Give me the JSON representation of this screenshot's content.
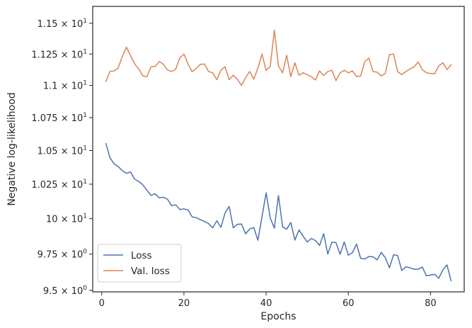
{
  "chart_data": {
    "type": "line",
    "xlabel": "Epochs",
    "ylabel": "Negative log-likelihood",
    "xlim": [
      -2.2,
      88.2
    ],
    "ylim": [
      9.49,
      11.64
    ],
    "y_scale": "log",
    "grid": false,
    "legend": "bottom-left",
    "xticks": [
      0,
      20,
      40,
      60,
      80
    ],
    "xtick_labels": [
      "0",
      "20",
      "40",
      "60",
      "80"
    ],
    "yticks": [
      9.5,
      9.75,
      10,
      10.25,
      10.5,
      10.75,
      11,
      11.25,
      11.5
    ],
    "ytick_labels": [
      {
        "mantissa": "9.5",
        "exp": "0"
      },
      {
        "mantissa": "9.75",
        "exp": "0"
      },
      {
        "mantissa": "10",
        "exp": "1"
      },
      {
        "mantissa": "1.025",
        "exp": "1"
      },
      {
        "mantissa": "1.05",
        "exp": "1"
      },
      {
        "mantissa": "1.075",
        "exp": "1"
      },
      {
        "mantissa": "1.1",
        "exp": "1"
      },
      {
        "mantissa": "1.125",
        "exp": "1"
      },
      {
        "mantissa": "1.15",
        "exp": "1"
      }
    ],
    "ytick_base": "10",
    "ytick_times": "×",
    "series": [
      {
        "name": "Loss",
        "color": "#4c72b0",
        "x": [
          1,
          2,
          3,
          4,
          5,
          6,
          7,
          8,
          9,
          10,
          11,
          12,
          13,
          14,
          15,
          16,
          17,
          18,
          19,
          20,
          21,
          22,
          23,
          24,
          25,
          26,
          27,
          28,
          29,
          30,
          31,
          32,
          33,
          34,
          35,
          36,
          37,
          38,
          39,
          40,
          41,
          42,
          43,
          44,
          45,
          46,
          47,
          48,
          49,
          50,
          51,
          52,
          53,
          54,
          55,
          56,
          57,
          58,
          59,
          60,
          61,
          62,
          63,
          64,
          65,
          66,
          67,
          68,
          69,
          70,
          71,
          72,
          73,
          74,
          75,
          76,
          77,
          78,
          79,
          80,
          81,
          82,
          83,
          84,
          85
        ],
        "y": [
          10.553,
          10.446,
          10.4,
          10.38,
          10.35,
          10.33,
          10.34,
          10.287,
          10.27,
          10.245,
          10.205,
          10.168,
          10.18,
          10.15,
          10.155,
          10.14,
          10.093,
          10.1,
          10.066,
          10.07,
          10.063,
          10.013,
          10.007,
          9.993,
          9.98,
          9.965,
          9.935,
          9.985,
          9.938,
          10.04,
          10.088,
          9.935,
          9.96,
          9.962,
          9.892,
          9.927,
          9.937,
          9.847,
          10.015,
          10.187,
          10.006,
          9.932,
          10.168,
          9.942,
          9.925,
          9.973,
          9.848,
          9.92,
          9.876,
          9.835,
          9.86,
          9.845,
          9.81,
          9.894,
          9.75,
          9.833,
          9.83,
          9.748,
          9.835,
          9.742,
          9.76,
          9.82,
          9.72,
          9.716,
          9.733,
          9.731,
          9.71,
          9.762,
          9.725,
          9.655,
          9.745,
          9.74,
          9.636,
          9.662,
          9.655,
          9.645,
          9.645,
          9.66,
          9.6,
          9.605,
          9.61,
          9.583,
          9.64,
          9.675,
          9.565
        ]
      },
      {
        "name": "Val. loss",
        "color": "#dd8452",
        "x": [
          1,
          2,
          3,
          4,
          5,
          6,
          7,
          8,
          9,
          10,
          11,
          12,
          13,
          14,
          15,
          16,
          17,
          18,
          19,
          20,
          21,
          22,
          23,
          24,
          25,
          26,
          27,
          28,
          29,
          30,
          31,
          32,
          33,
          34,
          35,
          36,
          37,
          38,
          39,
          40,
          41,
          42,
          43,
          44,
          45,
          46,
          47,
          48,
          49,
          50,
          51,
          52,
          53,
          54,
          55,
          56,
          57,
          58,
          59,
          60,
          61,
          62,
          63,
          64,
          65,
          66,
          67,
          68,
          69,
          70,
          71,
          72,
          73,
          74,
          75,
          76,
          77,
          78,
          79,
          80,
          81,
          82,
          83,
          84,
          85
        ],
        "y": [
          11.03,
          11.112,
          11.115,
          11.138,
          11.23,
          11.305,
          11.238,
          11.172,
          11.13,
          11.075,
          11.07,
          11.148,
          11.15,
          11.19,
          11.168,
          11.122,
          11.11,
          11.128,
          11.22,
          11.25,
          11.17,
          11.108,
          11.135,
          11.168,
          11.17,
          11.11,
          11.1,
          11.045,
          11.12,
          11.148,
          11.045,
          11.08,
          11.048,
          11.0,
          11.06,
          11.11,
          11.05,
          11.138,
          11.25,
          11.12,
          11.15,
          11.445,
          11.155,
          11.1,
          11.24,
          11.07,
          11.18,
          11.08,
          11.1,
          11.085,
          11.07,
          11.043,
          11.115,
          11.078,
          11.11,
          11.12,
          11.038,
          11.1,
          11.12,
          11.1,
          11.115,
          11.07,
          11.075,
          11.19,
          11.217,
          11.11,
          11.105,
          11.075,
          11.095,
          11.245,
          11.25,
          11.11,
          11.085,
          11.11,
          11.13,
          11.148,
          11.187,
          11.125,
          11.1,
          11.095,
          11.092,
          11.155,
          11.18,
          11.125,
          11.165
        ]
      }
    ]
  }
}
